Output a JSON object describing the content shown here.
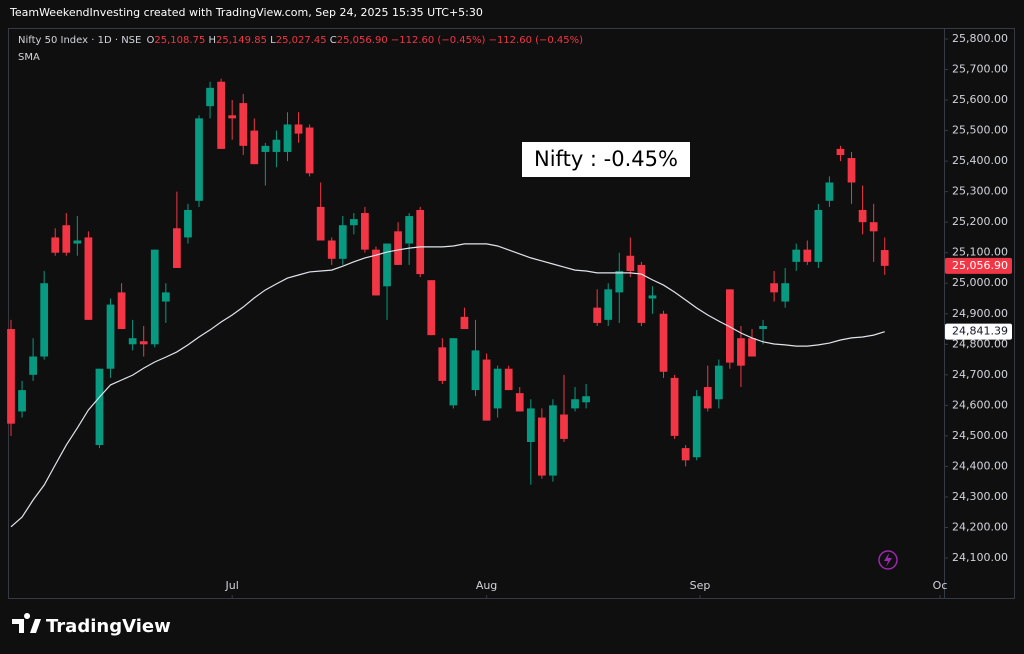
{
  "chart_data": {
    "type": "candlestick",
    "header": "TeamWeekendInvesting created with TradingView.com, Sep 24, 2025 15:35 UTC+5:30",
    "legend": {
      "symbol": "Nifty 50 Index · 1D · NSE",
      "fields": [
        {
          "key": "O",
          "value": "25,108.75"
        },
        {
          "key": "H",
          "value": "25,149.85"
        },
        {
          "key": "L",
          "value": "25,027.45"
        },
        {
          "key": "C",
          "value": "25,056.90"
        }
      ],
      "changes": [
        "−112.60 (−0.45%)",
        "−112.60 (−0.45%)"
      ]
    },
    "annotation": "Nifty : -0.45%",
    "watermark": "TradingView",
    "up_color": "#089981",
    "down_color": "#f23645",
    "candles": {
      "open": [
        24850,
        24580,
        24700,
        24760,
        25150,
        25190,
        25130,
        25150,
        24470,
        24720,
        24970,
        24800,
        24810,
        24800,
        24940,
        25180,
        25150,
        25270,
        25580,
        25660,
        25550,
        25590,
        25500,
        25430,
        25430,
        25430,
        25520,
        25510,
        25250,
        25140,
        25080,
        25190,
        25230,
        25110,
        24990,
        25170,
        25130,
        25240,
        25010,
        24790,
        24600,
        24890,
        24650,
        24750,
        24590,
        24720,
        24640,
        24480,
        24560,
        24370,
        24570,
        24590,
        24610,
        24920,
        24880,
        24970,
        25090,
        25060,
        24950,
        24900,
        24690,
        24460,
        24430,
        24660,
        24620,
        24980,
        24820,
        24820,
        24850,
        25000,
        24940,
        25070,
        25110,
        25070,
        25270,
        25440,
        25410,
        25240,
        25200,
        25108.75
      ],
      "high": [
        24880,
        24680,
        24820,
        25040,
        25180,
        25230,
        25220,
        25170,
        24720,
        24950,
        25000,
        24880,
        24860,
        25110,
        25000,
        25300,
        25260,
        25550,
        25660,
        25670,
        25600,
        25620,
        25540,
        25460,
        25500,
        25560,
        25560,
        25520,
        25330,
        25150,
        25220,
        25230,
        25250,
        25120,
        25130,
        25200,
        25230,
        25250,
        25010,
        24820,
        24820,
        24920,
        24880,
        24770,
        24730,
        24730,
        24660,
        24620,
        24590,
        24620,
        24700,
        24660,
        24670,
        24980,
        25000,
        25100,
        25150,
        25070,
        24990,
        24910,
        24700,
        24470,
        24650,
        24730,
        24750,
        24980,
        24860,
        24850,
        24880,
        25040,
        25050,
        25130,
        25140,
        25260,
        25350,
        25450,
        25430,
        25320,
        25260,
        25149.85
      ],
      "low": [
        24500,
        24560,
        24680,
        24750,
        25090,
        25090,
        25090,
        24880,
        24460,
        24690,
        24850,
        24780,
        24760,
        24790,
        24870,
        25050,
        25130,
        25250,
        25540,
        25440,
        25470,
        25420,
        25390,
        25320,
        25380,
        25400,
        25460,
        25350,
        25140,
        25060,
        25060,
        25160,
        25100,
        24960,
        24880,
        25060,
        25060,
        25020,
        24830,
        24670,
        24590,
        24850,
        24630,
        24550,
        24560,
        24650,
        24580,
        24340,
        24360,
        24350,
        24480,
        24580,
        24590,
        24860,
        24860,
        24870,
        25020,
        24860,
        24900,
        24690,
        24490,
        24400,
        24420,
        24580,
        24590,
        24720,
        24660,
        24760,
        24800,
        24940,
        24920,
        25040,
        25060,
        25050,
        25250,
        25400,
        25260,
        25160,
        25070,
        25027.45
      ],
      "close": [
        24540,
        24650,
        24760,
        25000,
        25100,
        25100,
        25140,
        24880,
        24720,
        24930,
        24850,
        24820,
        24800,
        25110,
        24970,
        25050,
        25240,
        25540,
        25640,
        25440,
        25540,
        25450,
        25390,
        25450,
        25470,
        25520,
        25490,
        25360,
        25140,
        25080,
        25190,
        25210,
        25110,
        24960,
        25130,
        25060,
        25220,
        25030,
        24830,
        24680,
        24820,
        24850,
        24780,
        24550,
        24720,
        24650,
        24580,
        24590,
        24370,
        24600,
        24490,
        24620,
        24630,
        24870,
        24980,
        25040,
        25040,
        24870,
        24960,
        24710,
        24500,
        24420,
        24630,
        24590,
        24730,
        24740,
        24730,
        24760,
        24860,
        24970,
        25000,
        25110,
        25070,
        25240,
        25330,
        25420,
        25330,
        25200,
        25170,
        25056.9
      ]
    },
    "series": [
      {
        "name": "SMA",
        "color": "#e0e3eb",
        "values": [
          24202,
          24234,
          24290,
          24339,
          24405,
          24470,
          24526,
          24585,
          24627,
          24667,
          24683,
          24699,
          24722,
          24742,
          24758,
          24775,
          24798,
          24824,
          24847,
          24873,
          24896,
          24922,
          24952,
          24978,
          24998,
          25017,
          25027,
          25037,
          25040,
          25043,
          25056,
          25070,
          25083,
          25092,
          25102,
          25109,
          25115,
          25119,
          25119,
          25119,
          25122,
          25129,
          25129,
          25129,
          25122,
          25109,
          25096,
          25083,
          25073,
          25063,
          25053,
          25043,
          25040,
          25034,
          25034,
          25034,
          25034,
          25030,
          25011,
          24994,
          24971,
          24945,
          24919,
          24896,
          24876,
          24857,
          24837,
          24821,
          24808,
          24801,
          24798,
          24794,
          24794,
          24798,
          24804,
          24814,
          24821,
          24824,
          24830,
          24841.39
        ]
      }
    ],
    "price_labels": [
      {
        "value": 25056.9,
        "label": "25,056.90",
        "color": "#f23645"
      },
      {
        "value": 24841.39,
        "label": "24,841.39",
        "color": "#ffffff"
      }
    ],
    "xlim": [
      -0.27,
      84.36
    ],
    "xticks": [
      {
        "value": 20,
        "label": "Jul"
      },
      {
        "value": 43,
        "label": "Aug"
      },
      {
        "value": 62.3,
        "label": "Sep"
      },
      {
        "value": 84,
        "label": "Oc"
      }
    ],
    "ylim": [
      23969,
      25836
    ],
    "yticks": [
      {
        "value": 25800,
        "label": "25,800.00"
      },
      {
        "value": 25700,
        "label": "25,700.00"
      },
      {
        "value": 25600,
        "label": "25,600.00"
      },
      {
        "value": 25500,
        "label": "25,500.00"
      },
      {
        "value": 25400,
        "label": "25,400.00"
      },
      {
        "value": 25300,
        "label": "25,300.00"
      },
      {
        "value": 25200,
        "label": "25,200.00"
      },
      {
        "value": 25100,
        "label": "25,100.00"
      },
      {
        "value": 25000,
        "label": "25,000.00"
      },
      {
        "value": 24900,
        "label": "24,900.00"
      },
      {
        "value": 24800,
        "label": "24,800.00"
      },
      {
        "value": 24700,
        "label": "24,700.00"
      },
      {
        "value": 24600,
        "label": "24,600.00"
      },
      {
        "value": 24500,
        "label": "24,500.00"
      },
      {
        "value": 24400,
        "label": "24,400.00"
      },
      {
        "value": 24300,
        "label": "24,300.00"
      },
      {
        "value": 24200,
        "label": "24,200.00"
      },
      {
        "value": 24100,
        "label": "24,100.00"
      }
    ],
    "grid": false
  }
}
